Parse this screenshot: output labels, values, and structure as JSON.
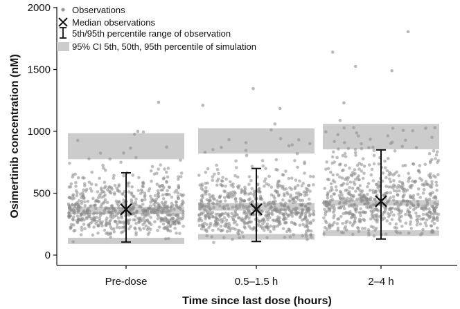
{
  "chart_data": {
    "type": "scatter",
    "title": "",
    "xlabel": "Time since last dose (hours)",
    "ylabel": "Osimertinib concentration (nM)",
    "ylim": [
      0,
      2000
    ],
    "yticks": [
      0,
      500,
      1000,
      1500,
      2000
    ],
    "grid": false,
    "legend_position": "top-left",
    "legend": [
      {
        "key": "observations",
        "label": "Observations"
      },
      {
        "key": "median",
        "label": "Median observations"
      },
      {
        "key": "range",
        "label": "5th/95th percentile range of observation"
      },
      {
        "key": "ci",
        "label": "95% CI 5th, 50th, 95th percentile of simulation"
      }
    ],
    "categories": [
      "Pre-dose",
      "0.5–1.5 h",
      "2–4 h"
    ],
    "median_observations": [
      370,
      370,
      435
    ],
    "observation_p5": [
      105,
      110,
      130
    ],
    "observation_p95": [
      665,
      700,
      850
    ],
    "simulation_ci": {
      "p5": [
        [
          90,
          140
        ],
        [
          125,
          170
        ],
        [
          155,
          200
        ]
      ],
      "p50": [
        [
          330,
          390
        ],
        [
          360,
          420
        ],
        [
          400,
          445
        ]
      ],
      "p95": [
        [
          775,
          985
        ],
        [
          820,
          1025
        ],
        [
          855,
          1060
        ]
      ]
    },
    "observation_points": {
      "note": "jittered individual observations; approx. 650 per category",
      "count_per_category": 650,
      "outliers": [
        [
          0,
          1235
        ],
        [
          0,
          1000
        ],
        [
          1,
          1345
        ],
        [
          1,
          1210
        ],
        [
          1,
          1185
        ],
        [
          2,
          1805
        ],
        [
          2,
          1640
        ],
        [
          2,
          1525
        ],
        [
          2,
          1490
        ],
        [
          2,
          1230
        ]
      ]
    },
    "colors": {
      "points": "#888888",
      "ci_band": "#cccccc",
      "marker": "#111111"
    }
  }
}
